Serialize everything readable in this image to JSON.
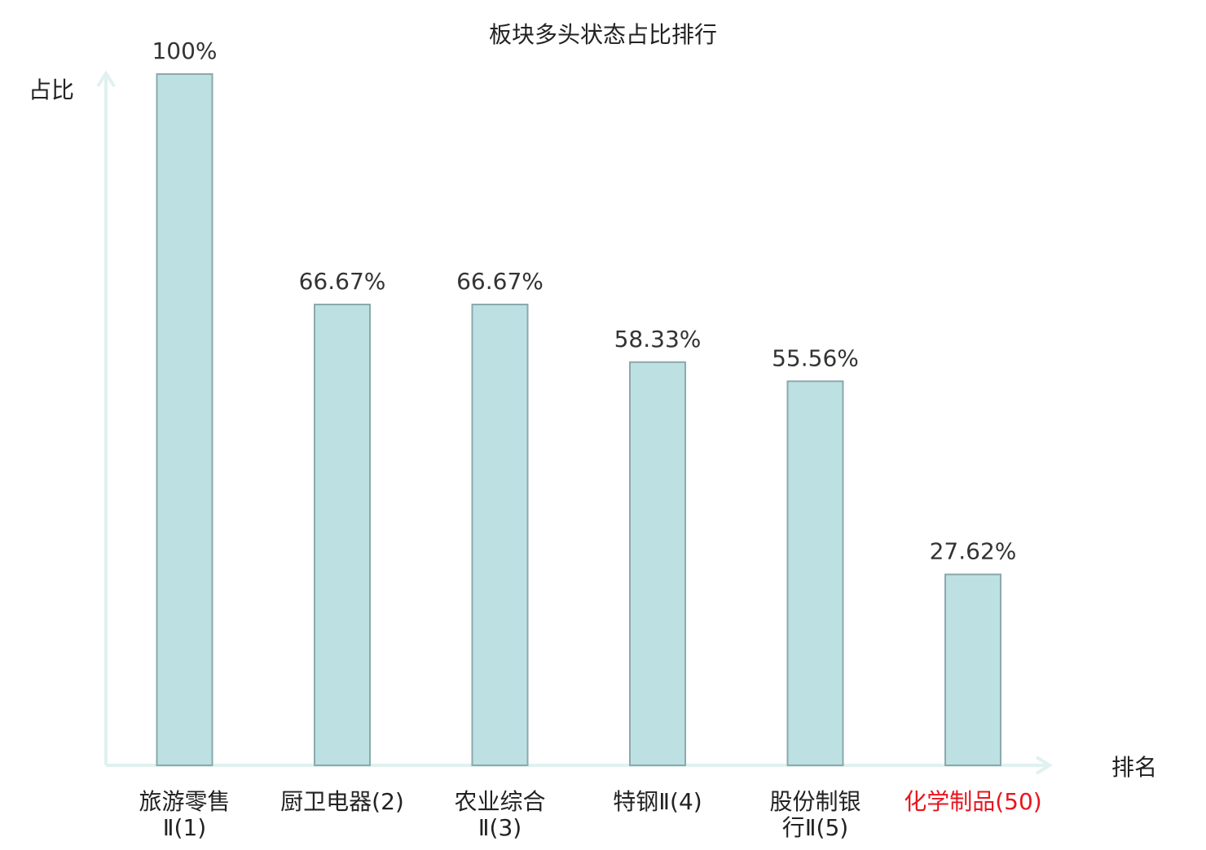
{
  "chart_data": {
    "type": "bar",
    "title": "板块多头状态占比排行",
    "ylabel": "占比",
    "xlabel": "排名",
    "ylim": [
      0,
      100
    ],
    "grid": false,
    "legend": "none",
    "categories": [
      {
        "name_lines": [
          "旅游零售",
          "Ⅱ(1)"
        ],
        "highlight": false
      },
      {
        "name_lines": [
          "厨卫电器(2)"
        ],
        "highlight": false
      },
      {
        "name_lines": [
          "农业综合",
          "Ⅱ(3)"
        ],
        "highlight": false
      },
      {
        "name_lines": [
          "特钢Ⅱ(4)"
        ],
        "highlight": false
      },
      {
        "name_lines": [
          "股份制银",
          "行Ⅱ(5)"
        ],
        "highlight": false
      },
      {
        "name_lines": [
          "化学制品(50)"
        ],
        "highlight": true
      }
    ],
    "values": [
      100,
      66.67,
      66.67,
      58.33,
      55.56,
      27.62
    ],
    "value_labels": [
      "100%",
      "66.67%",
      "66.67%",
      "58.33%",
      "55.56%",
      "27.62%"
    ],
    "colors": {
      "bar_fill": "#bde0e3",
      "bar_stroke": "#8aa9ac",
      "axis": "#e0f1ef",
      "text": "#333333",
      "highlight": "#e8161e"
    }
  }
}
